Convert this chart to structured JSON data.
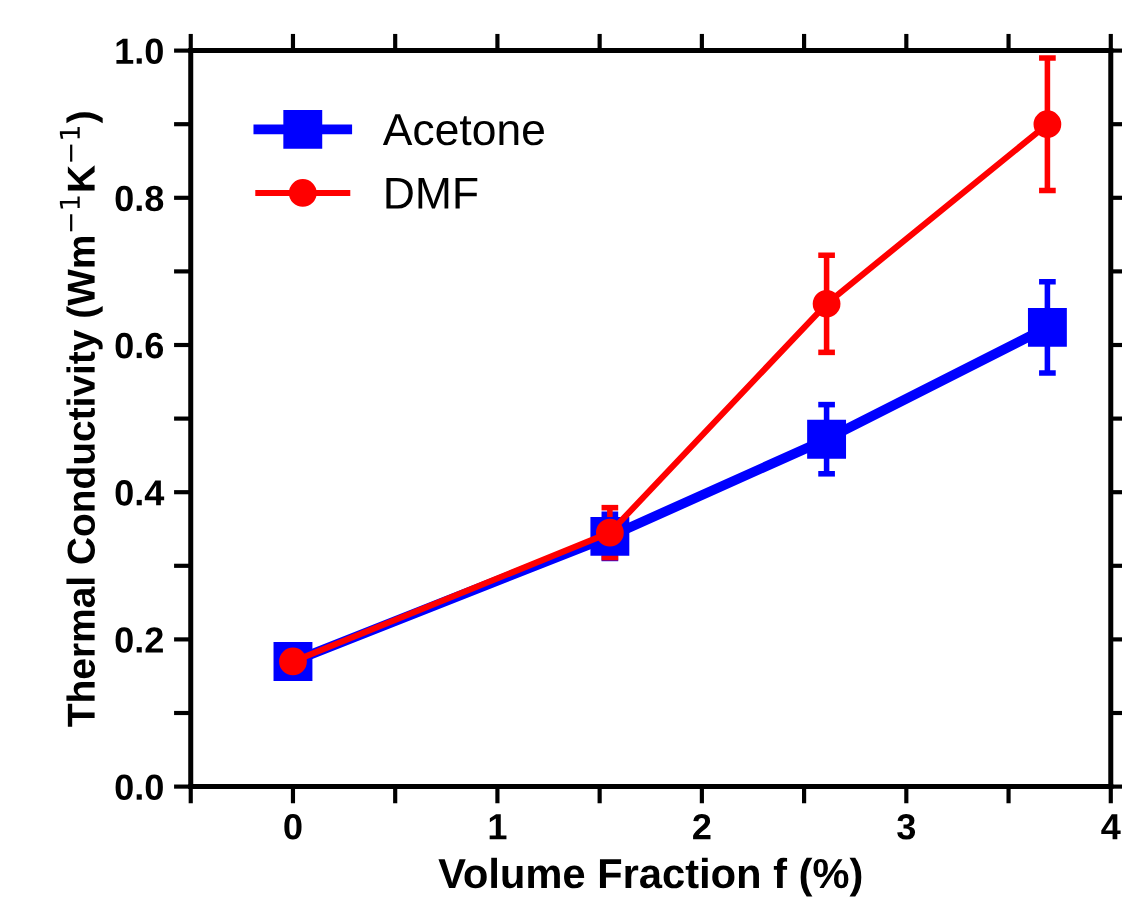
{
  "chart_data": {
    "type": "line",
    "xlabel": "Volume Fraction f (%)",
    "ylabel": "Thermal Conductivity (Wm$^{−1}$K$^{−1}$)",
    "x": [
      0,
      1.55,
      2.61,
      3.69
    ],
    "series": [
      {
        "name": "Acetone",
        "color": "#0000ff",
        "marker": "square",
        "values": [
          0.17,
          0.34,
          0.472,
          0.624
        ],
        "errors": [
          0.015,
          0.03,
          0.047,
          0.062
        ]
      },
      {
        "name": "DMF",
        "color": "#ff0000",
        "marker": "circle",
        "values": [
          0.17,
          0.345,
          0.656,
          0.9
        ],
        "errors": [
          0.015,
          0.034,
          0.066,
          0.09
        ]
      }
    ],
    "xlim": [
      -0.5,
      4
    ],
    "ylim": [
      0,
      1.0
    ],
    "xticks": [
      {
        "value": -0.5,
        "label": null
      },
      0,
      {
        "value": 0.5,
        "label": null
      },
      1,
      {
        "value": 1.5,
        "label": null
      },
      2,
      {
        "value": 2.5,
        "label": null
      },
      3,
      {
        "value": 3.5,
        "label": null
      },
      4
    ],
    "yticks": [
      {
        "value": 0,
        "label": "0.0"
      },
      {
        "value": 0.1,
        "label": null
      },
      0.2,
      {
        "value": 0.3,
        "label": null
      },
      0.4,
      {
        "value": 0.5,
        "label": null
      },
      0.6,
      {
        "value": 0.7,
        "label": null
      },
      0.8,
      {
        "value": 0.9,
        "label": null
      },
      {
        "value": 1.0,
        "label": "1.0"
      }
    ],
    "grid": false,
    "legend": "top left",
    "line_style": "solid"
  }
}
